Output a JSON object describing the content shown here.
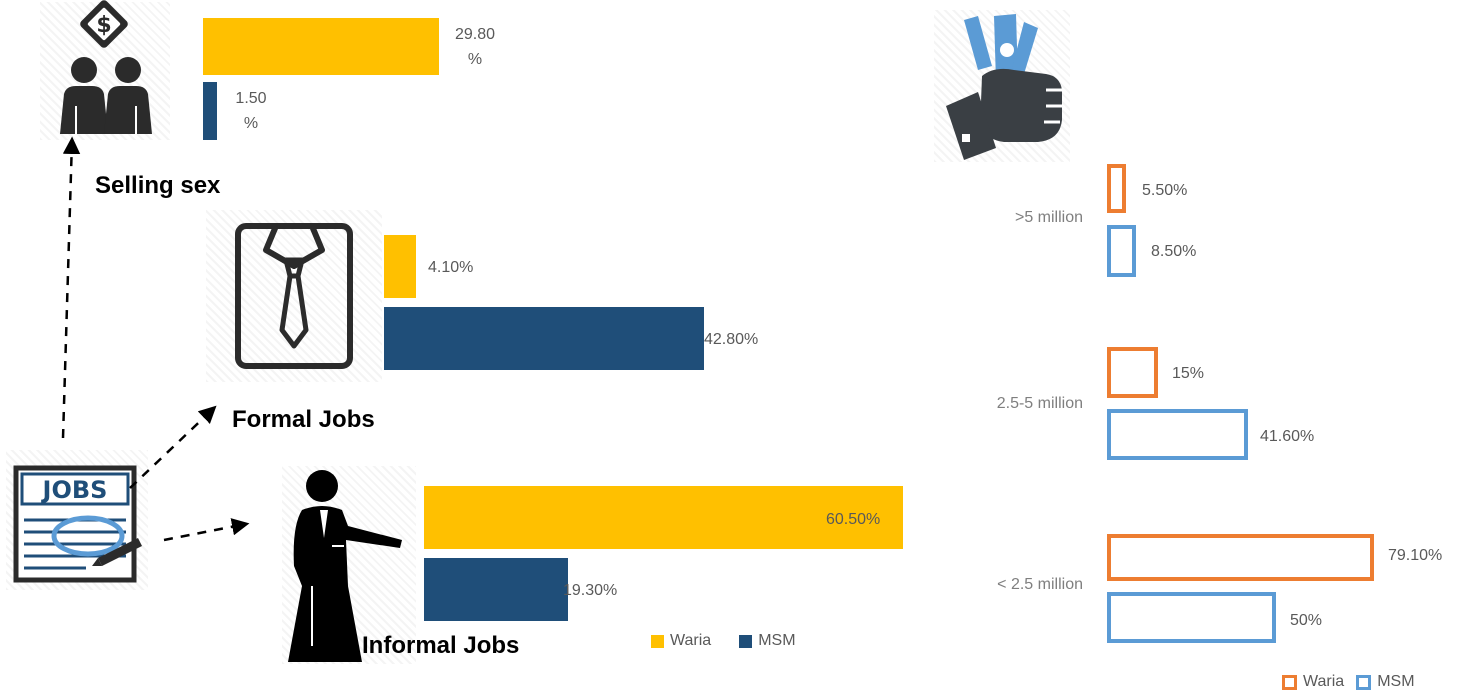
{
  "colors": {
    "waria_fill": "#FFC000",
    "msm_fill": "#1F4E79",
    "waria_outline": "#ED7D31",
    "msm_outline": "#5B9BD5"
  },
  "icons": [
    "money-exchange-people-icon",
    "shirt-tie-icon",
    "woman-presenter-icon",
    "jobs-newspaper-icon",
    "money-hand-icon"
  ],
  "jobs_chart": {
    "groups": [
      {
        "label": "Selling sex",
        "waria_label": "29.80\n%",
        "msm_label": "1.50\n%"
      },
      {
        "label": "Formal Jobs",
        "waria_label": "4.10%",
        "msm_label": "42.80%"
      },
      {
        "label": "Informal Jobs",
        "waria_label": "60.50%",
        "msm_label": "19.30%"
      }
    ],
    "legend": [
      "Waria",
      "MSM"
    ]
  },
  "income_chart": {
    "groups": [
      {
        "label": ">5 million",
        "waria_label": "5.50%",
        "msm_label": "8.50%"
      },
      {
        "label": "2.5-5 million",
        "waria_label": "15%",
        "msm_label": "41.60%"
      },
      {
        "label": "< 2.5 million",
        "waria_label": "79.10%",
        "msm_label": "50%"
      }
    ],
    "legend": [
      "Waria",
      "MSM"
    ]
  },
  "chart_data": [
    {
      "type": "bar",
      "categories": [
        "Selling sex",
        "Formal Jobs",
        "Informal Jobs"
      ],
      "series": [
        {
          "name": "Waria",
          "values": [
            29.8,
            4.1,
            60.5
          ]
        },
        {
          "name": "MSM",
          "values": [
            1.5,
            42.8,
            19.3
          ]
        }
      ],
      "orientation": "horizontal",
      "legend": "bottom-right"
    },
    {
      "type": "bar",
      "categories": [
        ">5 million",
        "2.5-5 million",
        "< 2.5 million"
      ],
      "series": [
        {
          "name": "Waria",
          "values": [
            5.5,
            15,
            79.1
          ]
        },
        {
          "name": "MSM",
          "values": [
            8.5,
            41.6,
            50
          ]
        }
      ],
      "orientation": "horizontal",
      "legend": "bottom-right"
    }
  ]
}
